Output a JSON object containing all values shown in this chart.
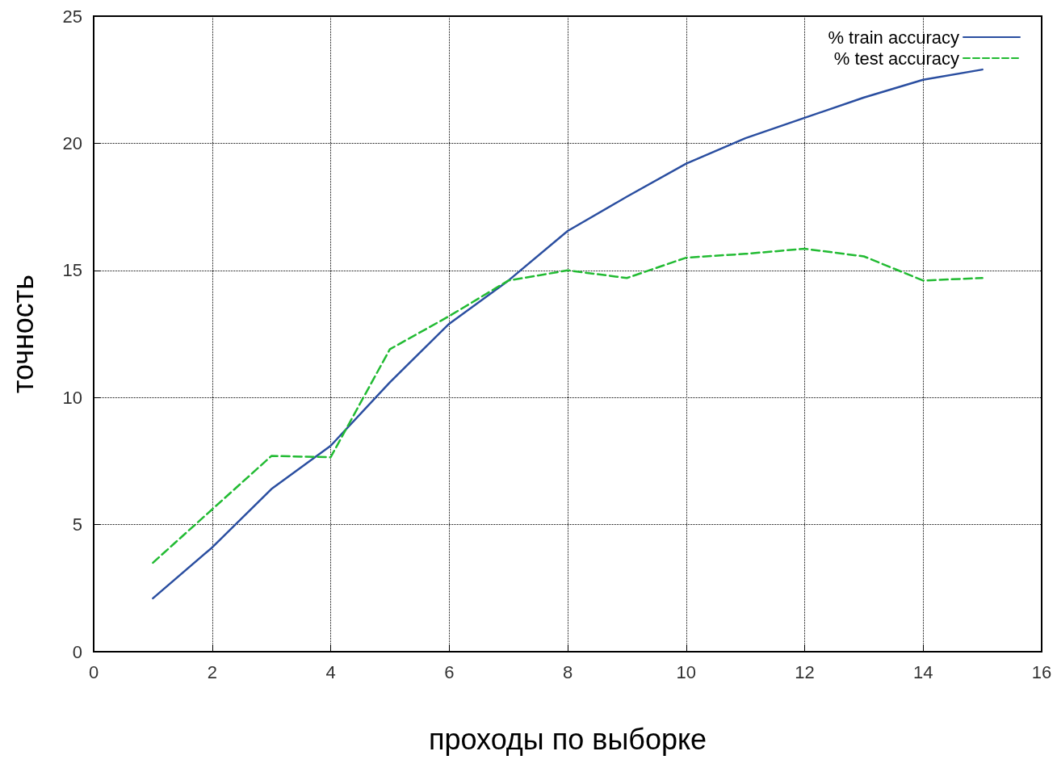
{
  "chart_data": {
    "type": "line",
    "xlabel": "проходы по выборке",
    "ylabel": "точность",
    "x": [
      1,
      2,
      3,
      4,
      5,
      6,
      7,
      8,
      9,
      10,
      11,
      12,
      13,
      14,
      15
    ],
    "series": [
      {
        "name": "% train accuracy",
        "color": "#2a4ea0",
        "line_style": "solid",
        "values": [
          2.1,
          4.1,
          6.4,
          8.1,
          10.6,
          12.9,
          14.6,
          16.55,
          17.9,
          19.2,
          20.2,
          21.0,
          21.8,
          22.5,
          22.9
        ]
      },
      {
        "name": "% test accuracy",
        "color": "#22bb33",
        "line_style": "dashed",
        "values": [
          3.5,
          5.6,
          7.7,
          7.65,
          11.9,
          13.2,
          14.6,
          15.0,
          14.7,
          15.5,
          15.65,
          15.85,
          15.55,
          14.6,
          14.7
        ]
      }
    ],
    "xlim": [
      0,
      16
    ],
    "xticks": [
      0,
      2,
      4,
      6,
      8,
      10,
      12,
      14,
      16
    ],
    "ylim": [
      0,
      25
    ],
    "yticks": [
      0,
      5,
      10,
      15,
      20,
      25
    ],
    "grid": true,
    "legend": "top right",
    "marker": "none"
  }
}
